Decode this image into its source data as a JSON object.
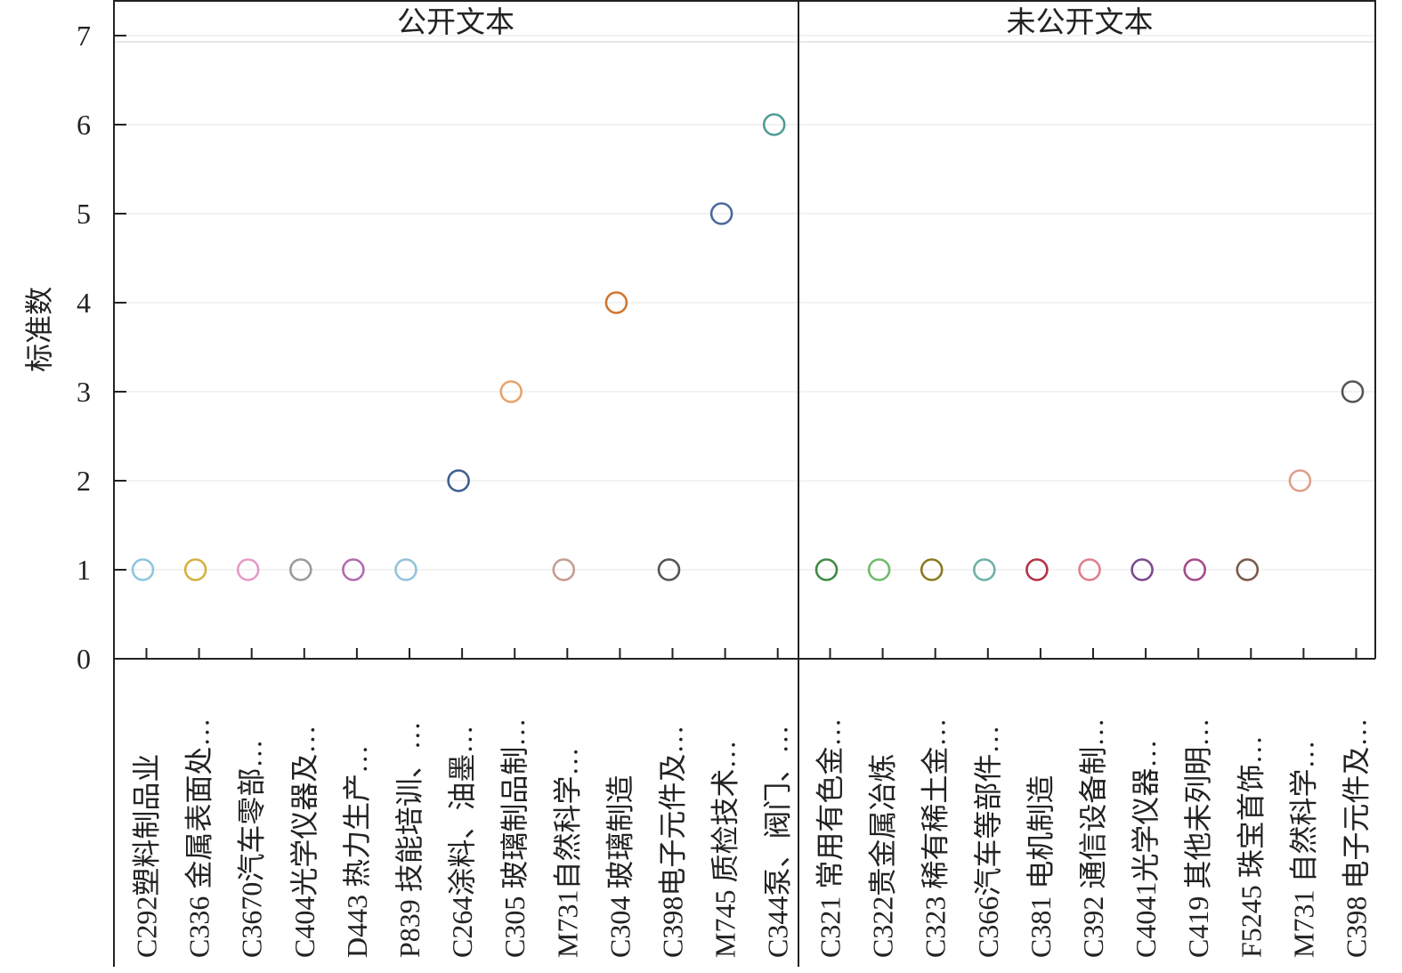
{
  "chart_data": {
    "type": "scatter",
    "ylabel": "标准数",
    "ylim": [
      0,
      7
    ],
    "y_ticks": [
      "0",
      "1",
      "2",
      "3",
      "4",
      "5",
      "6",
      "7"
    ],
    "grid": true,
    "marker": "open-circle",
    "panels": [
      {
        "title": "公开文本",
        "points": [
          {
            "category": "C292塑料制品业",
            "value": 1,
            "color": "#8cc6de"
          },
          {
            "category": "C336 金属表面处…",
            "value": 1,
            "color": "#d4b23c"
          },
          {
            "category": "C3670汽车零部…",
            "value": 1,
            "color": "#e69ac6"
          },
          {
            "category": "C404光学仪器及…",
            "value": 1,
            "color": "#9b9b9b"
          },
          {
            "category": "D443 热力生产…",
            "value": 1,
            "color": "#b26ab0"
          },
          {
            "category": "P839 技能培训、…",
            "value": 1,
            "color": "#93c3da"
          },
          {
            "category": "C264涂料、油墨…",
            "value": 2,
            "color": "#3f5f8f"
          },
          {
            "category": "C305 玻璃制品制…",
            "value": 3,
            "color": "#e9a36a"
          },
          {
            "category": "M731自然科学…",
            "value": 1,
            "color": "#c69c94"
          },
          {
            "category": "C304 玻璃制造",
            "value": 4,
            "color": "#d2752f"
          },
          {
            "category": "C398电子元件及…",
            "value": 1,
            "color": "#555555"
          },
          {
            "category": "M745 质检技术…",
            "value": 5,
            "color": "#4a6a9c"
          },
          {
            "category": "C344泵、阀门、…",
            "value": 6,
            "color": "#4f9c93"
          }
        ]
      },
      {
        "title": "未公开文本",
        "points": [
          {
            "category": "C321 常用有色金…",
            "value": 1,
            "color": "#3f8a45"
          },
          {
            "category": "C322贵金属冶炼",
            "value": 1,
            "color": "#6fbc6b"
          },
          {
            "category": "C323 稀有稀土金…",
            "value": 1,
            "color": "#8a7a22"
          },
          {
            "category": "C366汽车等部件…",
            "value": 1,
            "color": "#6fb0a7"
          },
          {
            "category": "C381 电机制造",
            "value": 1,
            "color": "#b23248"
          },
          {
            "category": "C392 通信设备制…",
            "value": 1,
            "color": "#e07e8e"
          },
          {
            "category": "C4041光学仪器…",
            "value": 1,
            "color": "#7a4a8e"
          },
          {
            "category": "C419 其他未列明…",
            "value": 1,
            "color": "#a54a8a"
          },
          {
            "category": "F5245 珠宝首饰…",
            "value": 1,
            "color": "#7a5a4a"
          },
          {
            "category": "M731 自然科学…",
            "value": 2,
            "color": "#dea08c"
          },
          {
            "category": "C398 电子元件及…",
            "value": 3,
            "color": "#555555"
          }
        ]
      }
    ]
  }
}
